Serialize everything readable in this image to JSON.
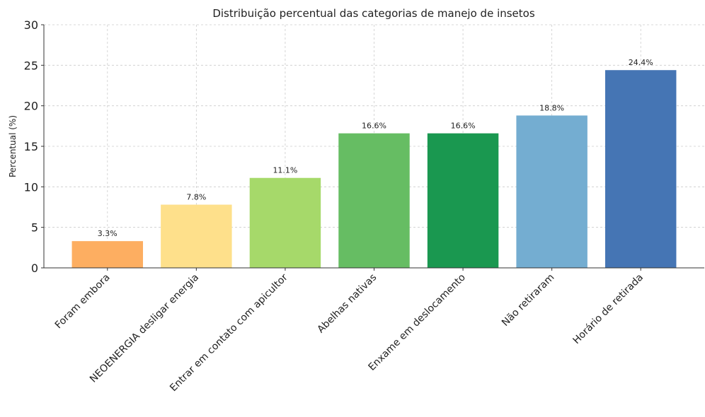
{
  "chart_data": {
    "type": "bar",
    "title": "Distribuição percentual das categorias de manejo de insetos",
    "y_label": "Percentual (%)",
    "categories": [
      "Foram embora",
      "NEOENERGIA desligar energia",
      "Entrar em contato com apicultor",
      "Abelhas nativas",
      "Enxame em deslocamento",
      "Não retiraram",
      "Horário de retirada"
    ],
    "values": [
      3.3,
      7.8,
      11.1,
      16.6,
      16.6,
      18.8,
      24.4
    ],
    "value_labels": [
      "3.3%",
      "7.8%",
      "11.1%",
      "16.6%",
      "16.6%",
      "18.8%",
      "24.4%"
    ],
    "colors": [
      "#fdae61",
      "#fee08b",
      "#a6d96a",
      "#66bd63",
      "#1a9850",
      "#74add1",
      "#4575b4"
    ],
    "ylim": [
      0,
      30
    ],
    "yticks": [
      0,
      5,
      10,
      15,
      20,
      25,
      30
    ],
    "grid": true
  }
}
